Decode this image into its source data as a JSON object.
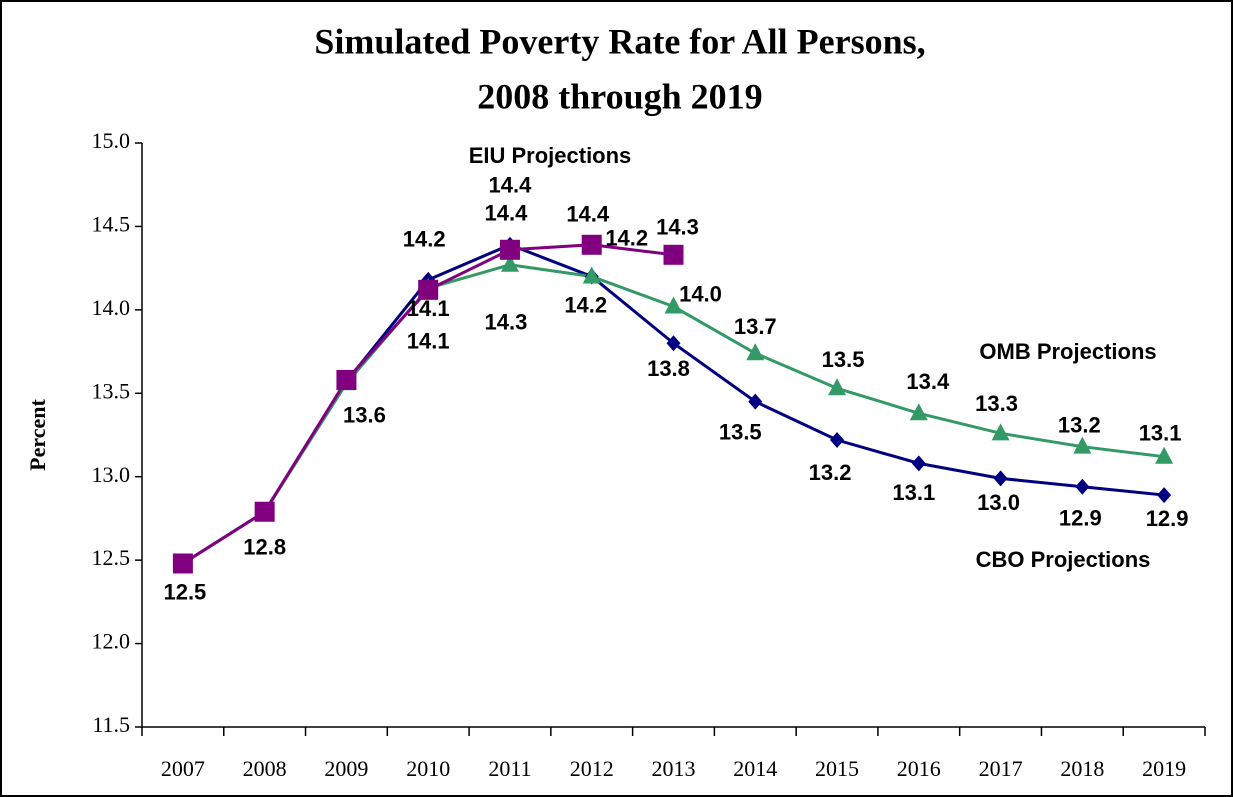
{
  "chart_data": {
    "type": "line",
    "title": "Simulated Poverty Rate for All Persons,",
    "subtitle": "2008 through 2019",
    "y_label": "Percent",
    "categories": [
      "2007",
      "2008",
      "2009",
      "2010",
      "2011",
      "2012",
      "2013",
      "2014",
      "2015",
      "2016",
      "2017",
      "2018",
      "2019"
    ],
    "ylim": [
      11.5,
      15.0
    ],
    "yticks": [
      {
        "value": 11.5,
        "label": "11.5"
      },
      {
        "value": 12.0,
        "label": "12.0"
      },
      {
        "value": 12.5,
        "label": "12.5"
      },
      {
        "value": 13.0,
        "label": "13.0"
      },
      {
        "value": 13.5,
        "label": "13.5"
      },
      {
        "value": 14.0,
        "label": "14.0"
      },
      {
        "value": 14.5,
        "label": "14.5"
      },
      {
        "value": 15.0,
        "label": "15.0"
      }
    ],
    "series": [
      {
        "name": "CBO Projections",
        "color": "#000080",
        "marker": "diamond",
        "values": [
          12.48,
          12.79,
          13.57,
          14.18,
          14.39,
          14.2,
          13.8,
          13.45,
          13.22,
          13.08,
          12.99,
          12.94,
          12.89
        ],
        "value_labels": [
          "12.5",
          "12.8",
          "13.6",
          "14.2",
          "14.4",
          "14.2",
          "13.8",
          "13.5",
          "13.2",
          "13.1",
          "13.0",
          "12.9",
          "12.9"
        ]
      },
      {
        "name": "OMB Projections",
        "color": "#339966",
        "marker": "triangle",
        "values": [
          12.48,
          12.79,
          13.56,
          14.13,
          14.27,
          14.2,
          14.02,
          13.74,
          13.53,
          13.38,
          13.26,
          13.18,
          13.12
        ],
        "value_labels": [
          null,
          null,
          null,
          "14.1",
          "14.3",
          "14.2",
          "14.0",
          "13.7",
          "13.5",
          "13.4",
          "13.3",
          "13.2",
          "13.1"
        ]
      },
      {
        "name": "EIU Projections",
        "color": "#800080",
        "marker": "square",
        "values": [
          12.48,
          12.79,
          13.58,
          14.12,
          14.36,
          14.39,
          14.33,
          null,
          null,
          null,
          null,
          null,
          null
        ],
        "value_labels": [
          null,
          null,
          null,
          "14.1",
          "14.4",
          "14.4",
          "14.3",
          null,
          null,
          null,
          null,
          null,
          null
        ]
      }
    ]
  }
}
